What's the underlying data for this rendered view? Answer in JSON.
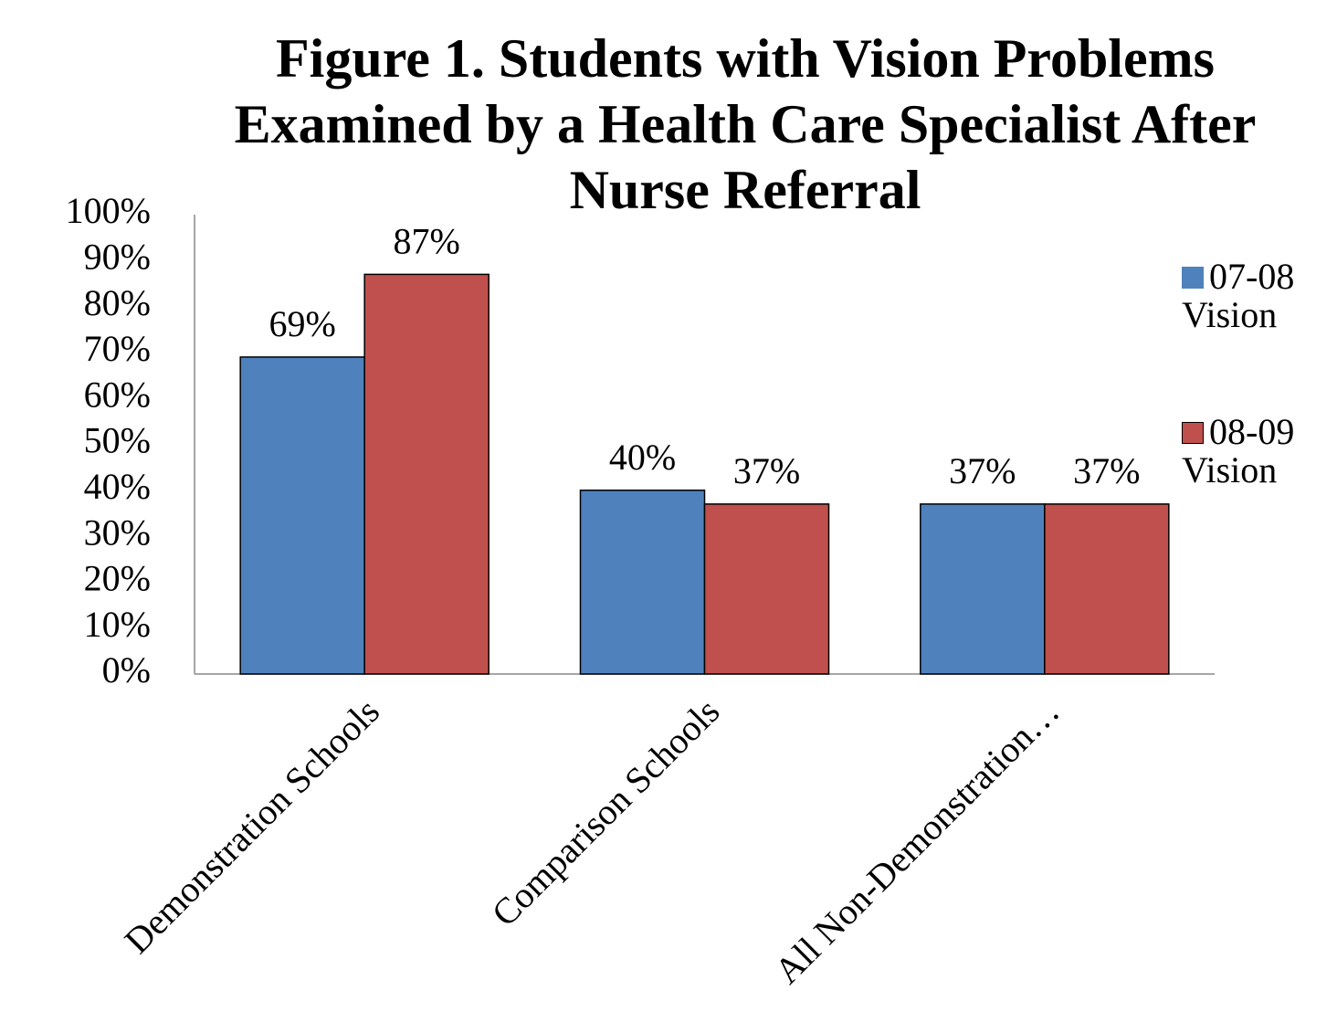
{
  "chart_data": {
    "type": "bar",
    "title": "Figure 1. Students with Vision Problems Examined by a Health Care Specialist After Nurse Referral",
    "categories": [
      "Demonstration Schools",
      "Comparison Schools",
      "All Non-Demonstration…"
    ],
    "series": [
      {
        "name": "07-08 Vision",
        "color": "#4f81bd",
        "values": [
          69,
          40,
          37
        ],
        "value_labels": [
          "69%",
          "40%",
          "37%"
        ]
      },
      {
        "name": "08-09 Vision",
        "color": "#c0504d",
        "values": [
          87,
          37,
          37
        ],
        "value_labels": [
          "87%",
          "37%",
          "37%"
        ]
      }
    ],
    "ylim": [
      0,
      100
    ],
    "yticks": [
      {
        "value": 0,
        "label": "0%"
      },
      {
        "value": 10,
        "label": "10%"
      },
      {
        "value": 20,
        "label": "20%"
      },
      {
        "value": 30,
        "label": "30%"
      },
      {
        "value": 40,
        "label": "40%"
      },
      {
        "value": 50,
        "label": "50%"
      },
      {
        "value": 60,
        "label": "60%"
      },
      {
        "value": 70,
        "label": "70%"
      },
      {
        "value": 80,
        "label": "80%"
      },
      {
        "value": 90,
        "label": "90%"
      },
      {
        "value": 100,
        "label": "100%"
      }
    ],
    "grid": false,
    "legend": "right"
  }
}
